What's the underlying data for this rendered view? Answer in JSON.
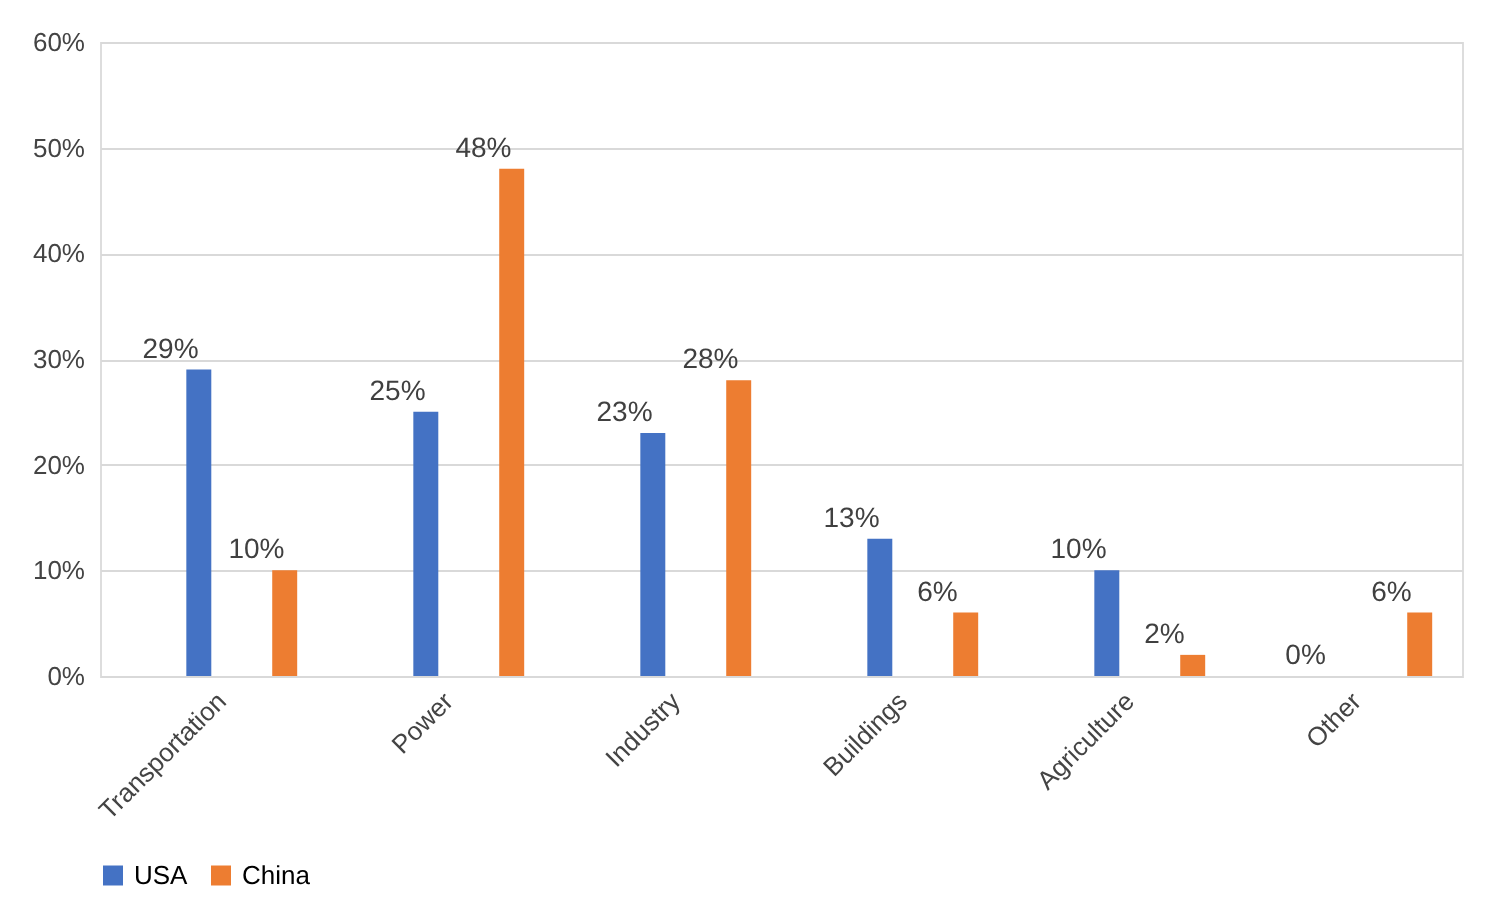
{
  "chart_data": {
    "type": "bar",
    "categories": [
      "Transportation",
      "Power",
      "Industry",
      "Buildings",
      "Agriculture",
      "Other"
    ],
    "series": [
      {
        "name": "USA",
        "color": "#4472c4",
        "values": [
          29,
          25,
          23,
          13,
          10,
          0
        ],
        "value_labels": [
          "29%",
          "25%",
          "23%",
          "13%",
          "10%",
          "0%"
        ]
      },
      {
        "name": "China",
        "color": "#ed7d31",
        "values": [
          10,
          48,
          28,
          6,
          2,
          6
        ],
        "value_labels": [
          "10%",
          "48%",
          "28%",
          "6%",
          "2%",
          "6%"
        ]
      }
    ],
    "ylim": [
      0,
      60
    ],
    "yticks": [
      {
        "value": 0,
        "label": "0%"
      },
      {
        "value": 10,
        "label": "10%"
      },
      {
        "value": 20,
        "label": "20%"
      },
      {
        "value": 30,
        "label": "30%"
      },
      {
        "value": 40,
        "label": "40%"
      },
      {
        "value": 50,
        "label": "50%"
      },
      {
        "value": 60,
        "label": "60%"
      }
    ],
    "grid": "y",
    "legend": "bottom"
  }
}
